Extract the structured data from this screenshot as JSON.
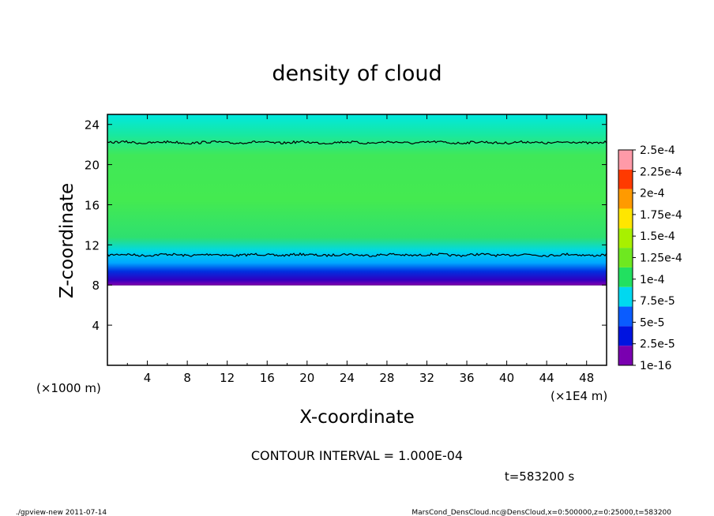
{
  "chart_data": {
    "type": "heatmap",
    "title": "density of cloud",
    "xlabel": "X-coordinate",
    "ylabel": "Z-coordinate",
    "x_scale_label": "(×1E4 m)",
    "y_scale_label": "(×1000 m)",
    "xlim": [
      0,
      50
    ],
    "ylim": [
      0,
      25
    ],
    "xticks": [
      "4",
      "8",
      "12",
      "16",
      "20",
      "24",
      "28",
      "32",
      "36",
      "40",
      "44",
      "48"
    ],
    "yticks": [
      "4",
      "8",
      "12",
      "16",
      "20",
      "24"
    ],
    "colorbar_labels": [
      "1e-16",
      "2.5e-5",
      "5e-5",
      "7.5e-5",
      "1e-4",
      "1.25e-4",
      "1.5e-4",
      "1.75e-4",
      "2e-4",
      "2.25e-4",
      "2.5e-4"
    ],
    "colorbar_colors": [
      "#7a00b0",
      "#0014e0",
      "#0a5cff",
      "#00d8f0",
      "#22e060",
      "#6ee820",
      "#a8f000",
      "#ffe600",
      "#ff9a00",
      "#ff3a00",
      "#ff9aa8"
    ],
    "cloud_base_z": 8,
    "contour_levels_z": [
      11,
      22.2
    ],
    "contour_interval": "CONTOUR INTERVAL = 1.000E-04",
    "time_label": "t=583200 s"
  },
  "footer": {
    "left": "./gpview-new  2011-07-14",
    "right": "MarsCond_DensCloud.nc@DensCloud,x=0:500000,z=0:25000,t=583200"
  }
}
